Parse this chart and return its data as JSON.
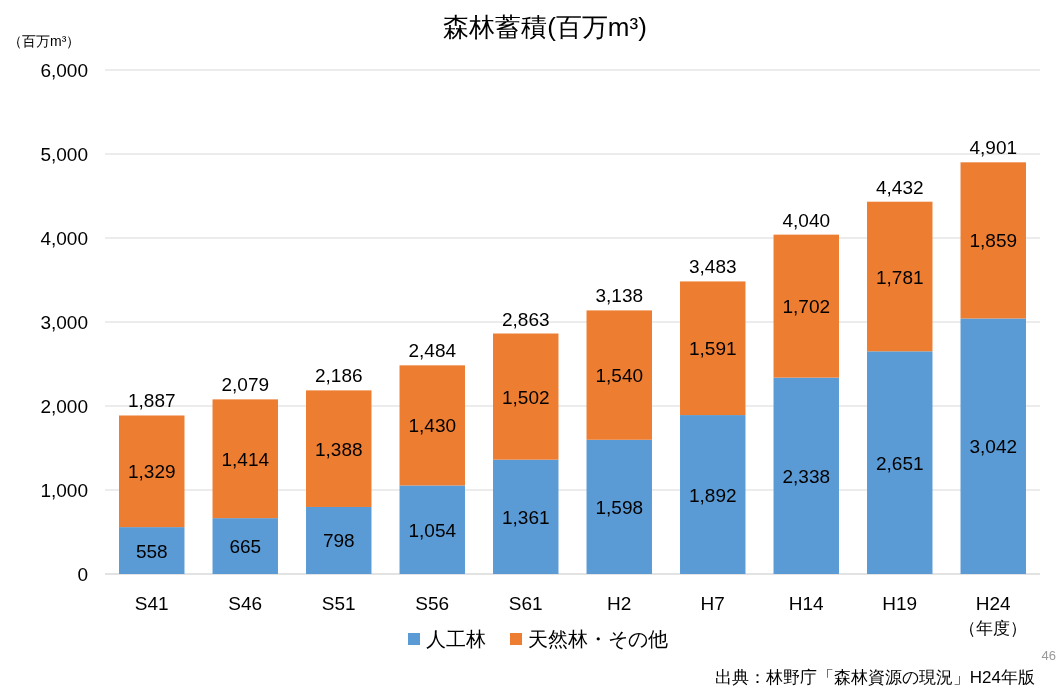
{
  "chart_data": {
    "type": "bar",
    "title": "森林蓄積(百万m³)",
    "ylabel": "（百万m³）",
    "xlabel": "（年度）",
    "categories": [
      "S41",
      "S46",
      "S51",
      "S56",
      "S61",
      "H2",
      "H7",
      "H14",
      "H19",
      "H24"
    ],
    "stacked": true,
    "series": [
      {
        "name": "人工林",
        "color": "#5b9bd5",
        "values": [
          558,
          665,
          798,
          1054,
          1361,
          1598,
          1892,
          2338,
          2651,
          3042
        ],
        "value_labels": [
          "558",
          "665",
          "798",
          "1,054",
          "1,361",
          "1,598",
          "1,892",
          "2,338",
          "2,651",
          "3,042"
        ]
      },
      {
        "name": "天然林・その他",
        "color": "#ed7d31",
        "values": [
          1329,
          1414,
          1388,
          1430,
          1502,
          1540,
          1591,
          1702,
          1781,
          1859
        ],
        "value_labels": [
          "1,329",
          "1,414",
          "1,388",
          "1,430",
          "1,502",
          "1,540",
          "1,591",
          "1,702",
          "1,781",
          "1,859"
        ]
      }
    ],
    "totals": [
      "1,887",
      "2,079",
      "2,186",
      "2,484",
      "2,863",
      "3,138",
      "3,483",
      "4,040",
      "4,432",
      "4,901"
    ],
    "ylim": [
      0,
      6000
    ],
    "yticks": [
      0,
      {
        "value": 1000,
        "label": "1,000"
      },
      {
        "value": 2000,
        "label": "2,000"
      },
      {
        "value": 3000,
        "label": "3,000"
      },
      {
        "value": 4000,
        "label": "4,000"
      },
      {
        "value": 5000,
        "label": "5,000"
      },
      {
        "value": 6000,
        "label": "6,000"
      }
    ],
    "grid": "y",
    "legend": "bottom",
    "annotations": [
      "出典：林野庁「森林資源の現況」H24年版",
      "46"
    ]
  }
}
